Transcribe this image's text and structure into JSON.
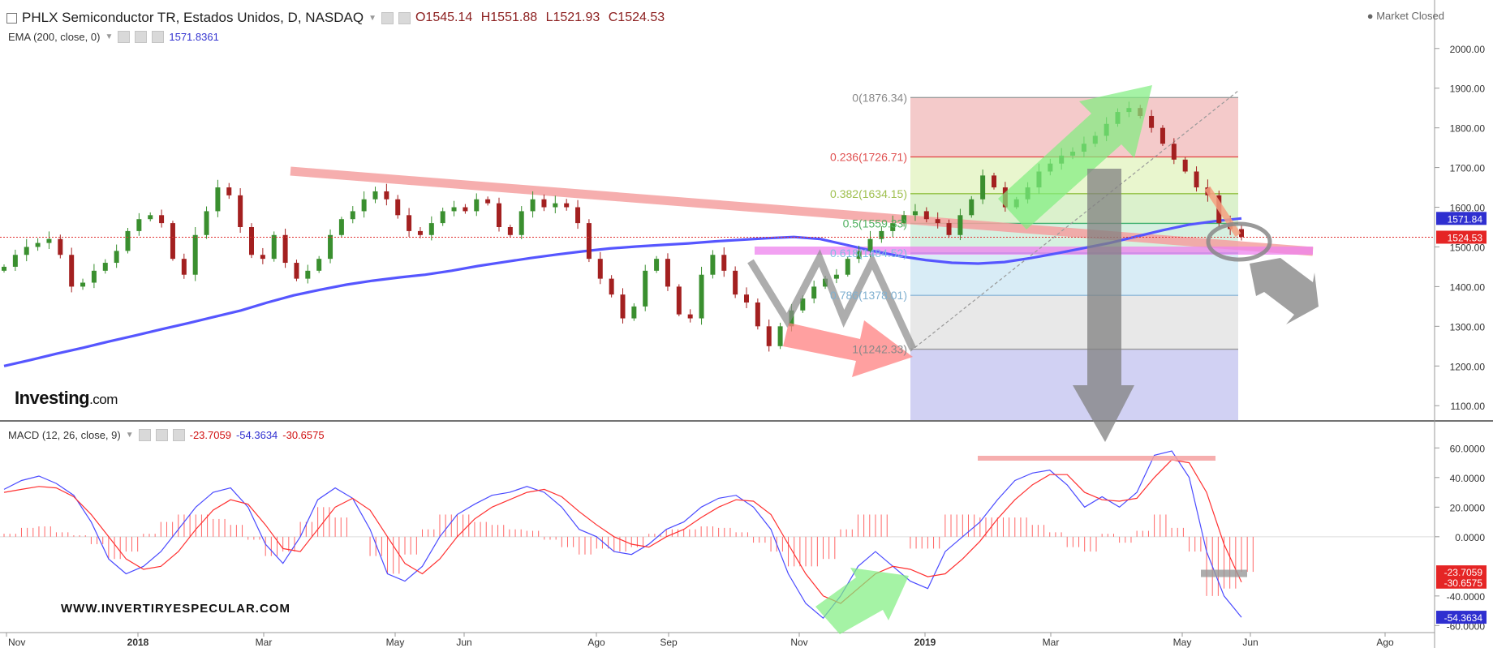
{
  "header": {
    "title": "PHLX Semiconductor TR, Estados Unidos, D, NASDAQ",
    "open": "O1545.14",
    "high": "H1551.88",
    "low": "L1521.93",
    "close": "C1524.53",
    "ema_label": "EMA (200, close, 0)",
    "ema_value": "1571.8361",
    "market_status": "Market Closed"
  },
  "macd_header": {
    "label": "MACD (12, 26, close, 9)",
    "hist": "-23.7059",
    "macd": "-54.3634",
    "signal": "-30.6575"
  },
  "branding": {
    "logo": "Investing",
    "logo_suffix": ".com",
    "website": "WWW.INVERTIRYESPECULAR.COM"
  },
  "colors": {
    "ema": "#5656ff",
    "up_candle": "#3a8f2f",
    "down_candle": "#a32020",
    "macd_line": "#4a4aff",
    "signal_line": "#ff3030",
    "histogram": "#ff6666",
    "fib_0": "#f3c4c4",
    "fib_236": "#e7f5c9",
    "fib_382": "#d7efc6",
    "fib_5": "#d2eedd",
    "fib_618": "#d4eaf5",
    "fib_786": "#e6e6e6",
    "fib_1": "#ccccf2"
  },
  "chart_data": [
    {
      "type": "candlestick",
      "name": "price",
      "title": "PHLX Semiconductor TR, Estados Unidos, D, NASDAQ",
      "x_ticks": [
        "Nov",
        "2018",
        "Mar",
        "May",
        "Jun",
        "Ago",
        "Sep",
        "Nov",
        "2019",
        "Mar",
        "May",
        "Jun",
        "Ago"
      ],
      "y_ticks": [
        "2000.00",
        "1900.00",
        "1800.00",
        "1700.00",
        "1600.00",
        "1500.00",
        "1400.00",
        "1300.00",
        "1200.00",
        "1100.00"
      ],
      "ylim": [
        1080,
        2020
      ],
      "close_series": [
        1450,
        1480,
        1500,
        1510,
        1520,
        1480,
        1400,
        1410,
        1440,
        1460,
        1490,
        1540,
        1570,
        1580,
        1560,
        1470,
        1430,
        1530,
        1590,
        1650,
        1630,
        1550,
        1480,
        1470,
        1530,
        1460,
        1420,
        1440,
        1470,
        1530,
        1570,
        1590,
        1620,
        1640,
        1620,
        1580,
        1540,
        1530,
        1560,
        1590,
        1600,
        1590,
        1620,
        1610,
        1550,
        1530,
        1590,
        1620,
        1600,
        1610,
        1600,
        1560,
        1470,
        1420,
        1380,
        1320,
        1350,
        1440,
        1470,
        1400,
        1330,
        1320,
        1430,
        1480,
        1440,
        1380,
        1360,
        1300,
        1250,
        1300,
        1340,
        1370,
        1400,
        1420,
        1430,
        1470,
        1490,
        1520,
        1540,
        1560,
        1580,
        1590,
        1570,
        1560,
        1530,
        1580,
        1620,
        1680,
        1650,
        1600,
        1620,
        1650,
        1690,
        1710,
        1730,
        1740,
        1760,
        1780,
        1810,
        1840,
        1850,
        1830,
        1800,
        1760,
        1720,
        1690,
        1650,
        1630,
        1560,
        1545,
        1525
      ],
      "price_label": "1524.53",
      "ema_label": "1571.84",
      "ema_series": [
        1200,
        1215,
        1231,
        1246,
        1262,
        1277,
        1293,
        1308,
        1324,
        1340,
        1360,
        1378,
        1392,
        1405,
        1415,
        1423,
        1430,
        1440,
        1452,
        1462,
        1472,
        1481,
        1489,
        1496,
        1501,
        1505,
        1509,
        1514,
        1518,
        1522,
        1525,
        1520,
        1505,
        1490,
        1477,
        1467,
        1460,
        1458,
        1462,
        1472,
        1484,
        1497,
        1510,
        1526,
        1542,
        1556,
        1565,
        1571.84
      ],
      "fibonacci": [
        {
          "label": "0(1876.34)",
          "value": 1876.34
        },
        {
          "label": "0.236(1726.71)",
          "value": 1726.71
        },
        {
          "label": "0.382(1634.15)",
          "value": 1634.15
        },
        {
          "label": "0.5(1559.33)",
          "value": 1559.33
        },
        {
          "label": "0.618(1484.52)",
          "value": 1484.52
        },
        {
          "label": "0.786(1378.01)",
          "value": 1378.01
        },
        {
          "label": "1(1242.33)",
          "value": 1242.33
        }
      ]
    },
    {
      "type": "line",
      "name": "macd",
      "title": "MACD (12, 26, close, 9)",
      "y_ticks": [
        "60.0000",
        "40.0000",
        "20.0000",
        "0.0000",
        "-40.0000",
        "-60.0000"
      ],
      "ylim": [
        -62,
        64
      ],
      "series": [
        {
          "name": "MACD",
          "values": [
            32,
            38,
            41,
            36,
            28,
            10,
            -15,
            -25,
            -20,
            -10,
            5,
            20,
            30,
            33,
            20,
            -5,
            -18,
            0,
            25,
            33,
            26,
            5,
            -25,
            -30,
            -20,
            0,
            15,
            22,
            28,
            30,
            34,
            30,
            20,
            5,
            0,
            -10,
            -12,
            -5,
            5,
            10,
            20,
            26,
            28,
            20,
            5,
            -25,
            -45,
            -55,
            -40,
            -20,
            -10,
            -20,
            -30,
            -35,
            -10,
            0,
            10,
            25,
            38,
            43,
            45,
            35,
            20,
            27,
            20,
            30,
            55,
            58,
            40,
            -10,
            -40,
            -54.3634
          ]
        },
        {
          "name": "Signal",
          "values": [
            30,
            32,
            34,
            33,
            27,
            15,
            0,
            -15,
            -22,
            -20,
            -10,
            5,
            18,
            25,
            22,
            8,
            -8,
            -10,
            5,
            20,
            26,
            18,
            0,
            -18,
            -25,
            -15,
            0,
            12,
            20,
            25,
            30,
            32,
            27,
            17,
            8,
            0,
            -5,
            -7,
            0,
            5,
            13,
            20,
            25,
            24,
            15,
            -5,
            -25,
            -40,
            -45,
            -35,
            -25,
            -20,
            -22,
            -27,
            -25,
            -15,
            -3,
            12,
            25,
            35,
            42,
            42,
            30,
            25,
            24,
            26,
            40,
            52,
            50,
            30,
            -5,
            -30.6575
          ]
        }
      ],
      "values_label": [
        "-23.7059",
        "-54.3634",
        "-30.6575"
      ]
    }
  ]
}
